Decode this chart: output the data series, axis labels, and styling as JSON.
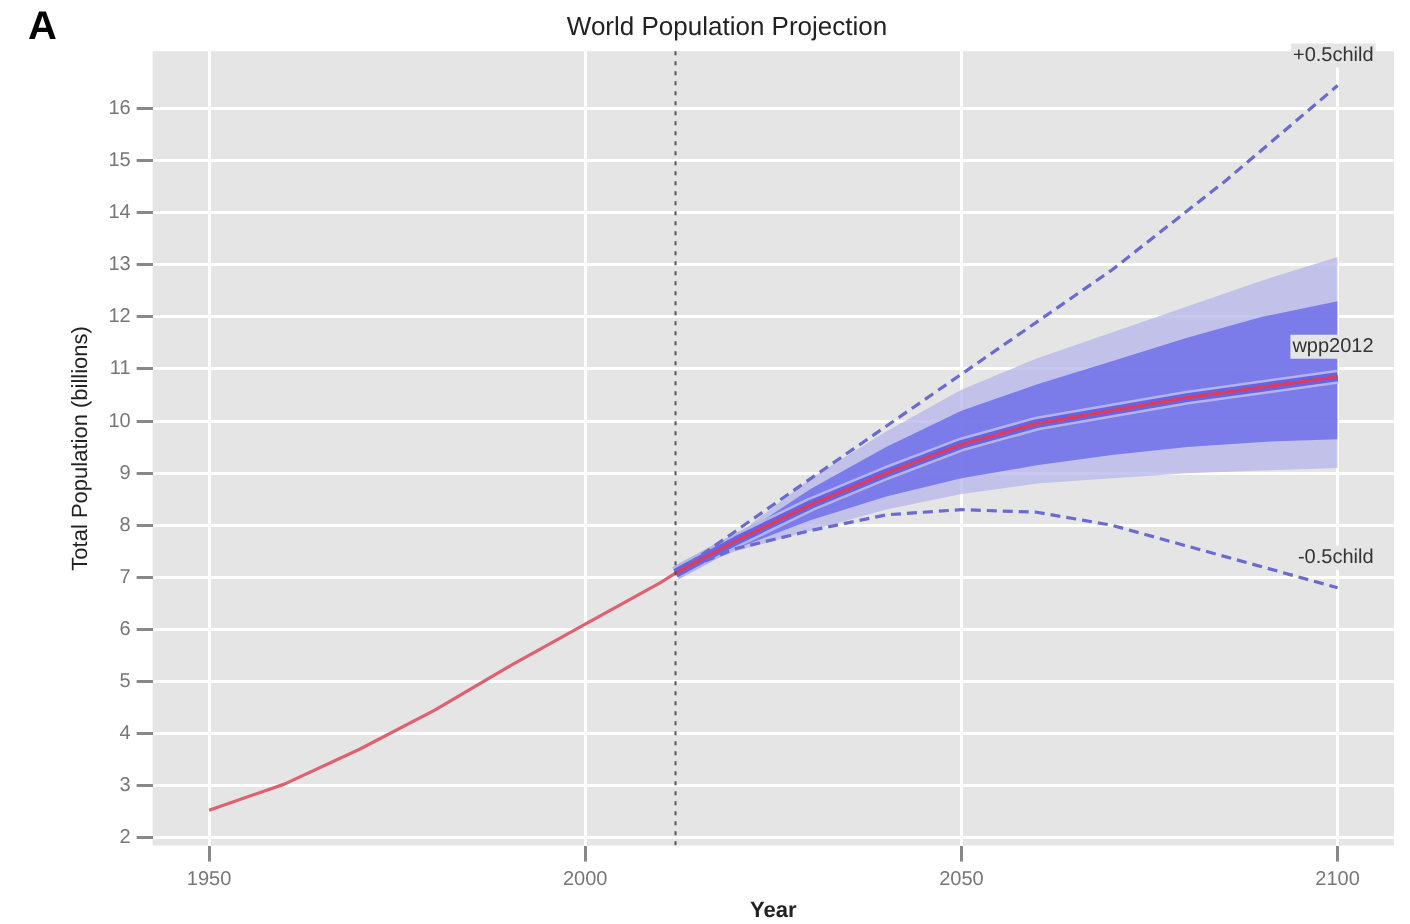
{
  "chart_data": {
    "type": "line",
    "title": "World Population Projection",
    "xlabel": "Year",
    "ylabel": "Total Population (billions)",
    "annotations": [
      "A"
    ],
    "xlim": [
      1942.5,
      2107.5
    ],
    "ylim": [
      1.85,
      17.1
    ],
    "xticks": [
      1950,
      2000,
      2050,
      2100
    ],
    "yticks": [
      2,
      3,
      4,
      5,
      6,
      7,
      8,
      9,
      10,
      11,
      12,
      13,
      14,
      15,
      16
    ],
    "grid": true,
    "ref_lines": [
      {
        "axis": "x",
        "value": 2012,
        "color": "#555555",
        "line_style": "dotted"
      }
    ],
    "series": [
      {
        "color": "#b4b4ea",
        "x": [
          2012,
          2020,
          2030,
          2040,
          2050,
          2060,
          2070,
          2080,
          2090,
          2100
        ],
        "values": [
          7.08,
          7.7,
          8.4,
          9.0,
          9.55,
          9.95,
          10.2,
          10.45,
          10.65,
          10.85
        ],
        "lower": [
          7.08,
          7.5,
          7.9,
          8.3,
          8.6,
          8.8,
          8.9,
          9.0,
          9.05,
          9.1
        ],
        "upper": [
          7.08,
          7.8,
          8.9,
          9.8,
          10.6,
          11.2,
          11.7,
          12.2,
          12.7,
          13.15
        ]
      },
      {
        "color": "#6464e8",
        "x": [
          2012,
          2020,
          2030,
          2040,
          2050,
          2060,
          2070,
          2080,
          2090,
          2100
        ],
        "values": [
          7.08,
          7.7,
          8.4,
          9.0,
          9.55,
          9.95,
          10.2,
          10.45,
          10.65,
          10.85
        ],
        "lower": [
          7.08,
          7.55,
          8.1,
          8.55,
          8.9,
          9.15,
          9.35,
          9.5,
          9.6,
          9.65
        ],
        "upper": [
          7.08,
          7.75,
          8.7,
          9.5,
          10.2,
          10.7,
          11.15,
          11.6,
          12.0,
          12.3
        ]
      },
      {
        "name": "wpp2012",
        "color": "#e03c5a",
        "x": [
          2012,
          2020,
          2030,
          2040,
          2050,
          2060,
          2070,
          2080,
          2090,
          2100
        ],
        "values": [
          7.08,
          7.7,
          8.4,
          9.0,
          9.55,
          9.95,
          10.2,
          10.45,
          10.65,
          10.85
        ]
      },
      {
        "color": "#e06070",
        "x": [
          1950,
          1960,
          1970,
          1980,
          1990,
          2000,
          2010,
          2012
        ],
        "values": [
          2.53,
          3.03,
          3.7,
          4.45,
          5.3,
          6.1,
          6.9,
          7.08
        ]
      },
      {
        "name": "+0.5child",
        "color": "#6a6ad0",
        "line_style": "dashed",
        "x": [
          2012,
          2030,
          2050,
          2070,
          2085,
          2100
        ],
        "values": [
          7.08,
          8.9,
          10.9,
          12.9,
          14.6,
          16.44
        ]
      },
      {
        "name": "-0.5child",
        "color": "#6a6ad0",
        "line_style": "dashed",
        "x": [
          2012,
          2020,
          2030,
          2040,
          2050,
          2060,
          2070,
          2080,
          2090,
          2100
        ],
        "values": [
          7.08,
          7.55,
          7.9,
          8.2,
          8.3,
          8.25,
          8.0,
          7.6,
          7.2,
          6.8
        ]
      }
    ]
  }
}
